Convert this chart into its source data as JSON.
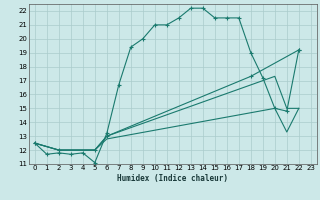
{
  "background_color": "#cce8e8",
  "grid_color": "#aacccc",
  "line_color": "#1a7a6e",
  "xlabel": "Humidex (Indice chaleur)",
  "xlim": [
    -0.5,
    23.5
  ],
  "ylim": [
    11,
    22.5
  ],
  "xticks": [
    0,
    1,
    2,
    3,
    4,
    5,
    6,
    7,
    8,
    9,
    10,
    11,
    12,
    13,
    14,
    15,
    16,
    17,
    18,
    19,
    20,
    21,
    22,
    23
  ],
  "yticks": [
    11,
    12,
    13,
    14,
    15,
    16,
    17,
    18,
    19,
    20,
    21,
    22
  ],
  "line1_x": [
    0,
    1,
    2,
    3,
    4,
    5,
    6,
    7,
    8,
    9,
    10,
    11,
    12,
    13,
    14,
    15,
    16,
    17,
    18,
    19,
    20,
    21,
    22
  ],
  "line1_y": [
    12.5,
    11.7,
    11.8,
    11.7,
    11.8,
    11.1,
    13.2,
    16.7,
    19.4,
    20.0,
    21.0,
    21.0,
    21.5,
    22.2,
    22.2,
    21.5,
    21.5,
    21.5,
    19.0,
    17.2,
    15.0,
    14.8,
    19.2
  ],
  "line2_x": [
    0,
    2,
    5,
    6,
    18,
    22
  ],
  "line2_y": [
    12.5,
    12.0,
    12.0,
    13.0,
    17.3,
    19.2
  ],
  "line3_x": [
    0,
    2,
    5,
    6,
    20,
    21,
    22
  ],
  "line3_y": [
    12.5,
    12.0,
    12.0,
    13.0,
    17.3,
    15.0,
    15.0
  ],
  "line4_x": [
    0,
    2,
    5,
    6,
    20,
    21,
    22
  ],
  "line4_y": [
    12.5,
    12.0,
    12.0,
    12.8,
    15.0,
    13.3,
    15.0
  ]
}
